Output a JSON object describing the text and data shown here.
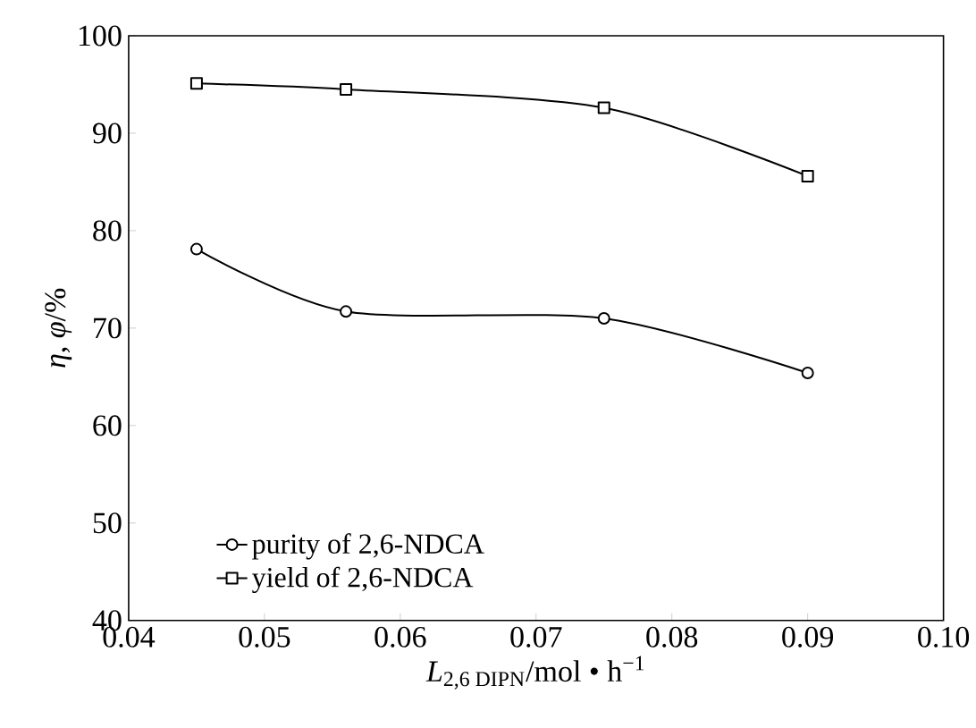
{
  "chart_data": {
    "type": "line",
    "xlabel": "*L*$_{2,6 DIPN}$/mol • h$^{−1}$",
    "ylabel": "*η*, *φ*/%",
    "x": [
      0.045,
      0.056,
      0.075,
      0.09
    ],
    "series": [
      {
        "name": "purity of 2,6-NDCA",
        "color": "#000000",
        "marker": "circle",
        "values": [
          78.1,
          71.7,
          71.0,
          65.4
        ]
      },
      {
        "name": "yield of 2,6-NDCA",
        "color": "#000000",
        "marker": "square",
        "values": [
          95.1,
          94.5,
          92.6,
          85.6
        ]
      }
    ],
    "xlim": [
      0.04,
      0.1
    ],
    "ylim": [
      40,
      100
    ],
    "xticks": [
      {
        "value": 0.04,
        "label": "0.04"
      },
      {
        "value": 0.05,
        "label": "0.05"
      },
      {
        "value": 0.06,
        "label": "0.06"
      },
      {
        "value": 0.07,
        "label": "0.07"
      },
      {
        "value": 0.08,
        "label": "0.08"
      },
      {
        "value": 0.09,
        "label": "0.09"
      },
      {
        "value": 0.1,
        "label": "0.10"
      }
    ],
    "yticks": [
      40,
      50,
      60,
      70,
      80,
      90,
      100
    ],
    "grid": false,
    "legend": "bottom",
    "line_style": "solid"
  }
}
